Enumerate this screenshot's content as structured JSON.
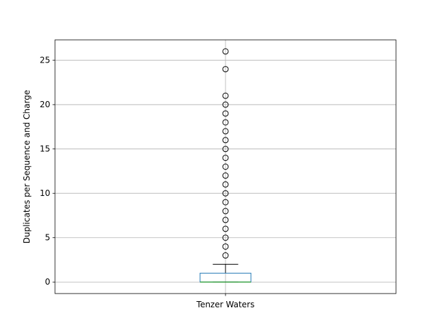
{
  "chart_data": {
    "type": "box",
    "xlabel": "",
    "ylabel": "Duplicates per Sequence and Charge",
    "categories": [
      "Tenzer Waters"
    ],
    "ylim": [
      -1.3,
      27.3
    ],
    "yticks": [
      0,
      5,
      10,
      15,
      20,
      25
    ],
    "grid": true,
    "box": {
      "min": 0,
      "q1": 0,
      "median": 0,
      "q3": 1,
      "whisker_low": 0,
      "whisker_high": 2,
      "outliers": [
        3,
        4,
        5,
        6,
        7,
        8,
        9,
        10,
        11,
        12,
        13,
        14,
        15,
        16,
        17,
        18,
        19,
        20,
        21,
        24,
        26
      ]
    },
    "colors": {
      "box": "#1f77b4",
      "median": "#2ca02c",
      "whisker": "#000000",
      "grid": "#b0b0b0",
      "outlier": "#000000"
    }
  }
}
